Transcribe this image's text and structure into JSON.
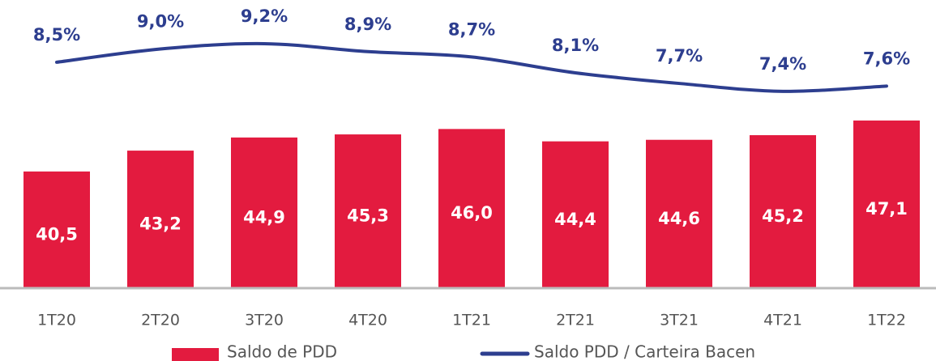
{
  "chart_data": {
    "type": "bar+line",
    "categories": [
      "1T20",
      "2T20",
      "3T20",
      "4T20",
      "1T21",
      "2T21",
      "3T21",
      "4T21",
      "1T22"
    ],
    "series": [
      {
        "name": "Saldo de PDD",
        "type": "bar",
        "color": "#e31b3f",
        "values": [
          40.5,
          43.2,
          44.9,
          45.3,
          46.0,
          44.4,
          44.6,
          45.2,
          47.1
        ],
        "value_labels": [
          "40,5",
          "43,2",
          "44,9",
          "45,3",
          "46,0",
          "44,4",
          "44,6",
          "45,2",
          "47,1"
        ]
      },
      {
        "name": "Saldo PDD / Carteira Bacen",
        "type": "line",
        "axis": "y2",
        "color": "#2d3e8f",
        "values": [
          8.5,
          9.0,
          9.2,
          8.9,
          8.7,
          8.1,
          7.7,
          7.4,
          7.6
        ],
        "value_labels": [
          "8,5%",
          "9,0%",
          "9,2%",
          "8,9%",
          "8,7%",
          "8,1%",
          "7,7%",
          "7,4%",
          "7,6%"
        ]
      }
    ],
    "ylim": [
      25.5,
      62.7
    ],
    "y2lim": [
      0,
      10.85
    ],
    "legend": "bottom"
  }
}
